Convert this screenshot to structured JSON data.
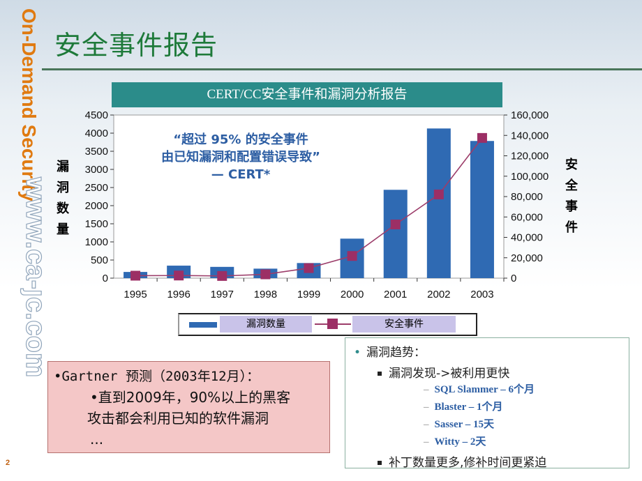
{
  "page": {
    "title": "安全事件报告",
    "page_number": "2",
    "side_logo_text": "On-Demand Security",
    "side_url_text": "www.ca-jc.com"
  },
  "chart_header": "CERT/CC安全事件和漏洞分析报告",
  "quote": {
    "line1": "“超过 95% 的安全事件",
    "line2": "由已知漏洞和配置错误导致”",
    "line3": "— CERT*"
  },
  "left_axis_label_chars": [
    "漏",
    "洞",
    "数",
    "量"
  ],
  "right_axis_label_chars": [
    "安",
    "全",
    "事",
    "件"
  ],
  "chart_data": {
    "type": "bar",
    "categories": [
      "1995",
      "1996",
      "1997",
      "1998",
      "1999",
      "2000",
      "2001",
      "2002",
      "2003"
    ],
    "series": [
      {
        "name": "漏洞数量",
        "type": "bar",
        "axis": "left",
        "values": [
          171,
          345,
          311,
          262,
          417,
          1090,
          2437,
          4129,
          3784
        ]
      },
      {
        "name": "安全事件",
        "type": "line",
        "axis": "right",
        "values": [
          2412,
          2573,
          2134,
          3734,
          9859,
          21756,
          52658,
          82094,
          137529
        ]
      }
    ],
    "left_axis": {
      "ylim": [
        0,
        4500
      ],
      "ticks": [
        "0",
        "500",
        "1000",
        "1500",
        "2000",
        "2500",
        "3000",
        "3500",
        "4000",
        "4500"
      ]
    },
    "right_axis": {
      "ylim": [
        0,
        160000
      ],
      "ticks": [
        "0",
        "20,000",
        "40,000",
        "60,000",
        "80,000",
        "100,000",
        "120,000",
        "140,000",
        "160,000"
      ]
    },
    "grid": false,
    "legend": "bottom"
  },
  "colors": {
    "bar": "#2f6ab3",
    "line": "#9c3d6a",
    "marker": "#9c2f65",
    "title": "#1e7a3a",
    "header_bg": "#2b8c8a",
    "logo_orange": "#e07a10"
  },
  "gartner": {
    "line1": "•Gartner 预测（2003年12月）：",
    "line2": "•直到2009年，90%以上的黑客",
    "line3": "攻击都会利用已知的软件漏洞",
    "line4": "..."
  },
  "trend": {
    "heading": "漏洞趋势：",
    "point1": "漏洞发现->被利用更快",
    "items": [
      "SQL Slammer – 6个月",
      "Blaster – 1个月",
      "Sasser – 15天",
      "Witty – 2天"
    ],
    "point2": "补丁数量更多,修补时间更紧迫"
  }
}
